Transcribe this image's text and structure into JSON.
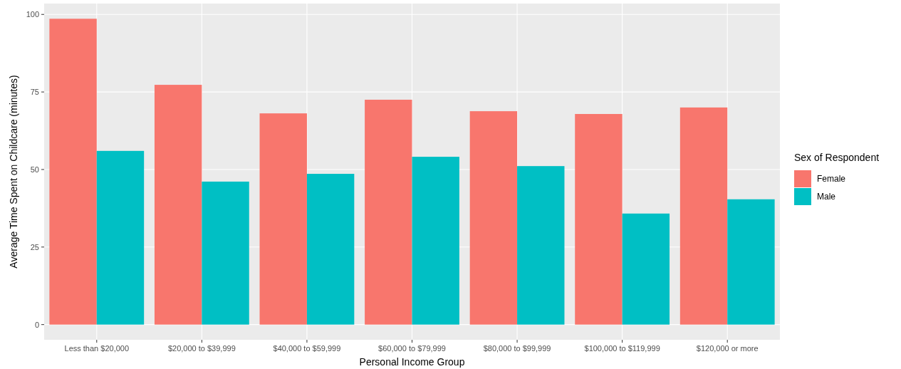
{
  "chart_data": {
    "type": "bar",
    "xlabel": "Personal Income Group",
    "ylabel": "Average Time Spent on Childcare (minutes)",
    "legend_title": "Sex of Respondent",
    "categories": [
      "Less than $20,000",
      "$20,000 to $39,999",
      "$40,000 to $59,999",
      "$60,000 to $79,999",
      "$80,000 to $99,999",
      "$100,000 to $119,999",
      "$120,000 or more"
    ],
    "series": [
      {
        "name": "Female",
        "color": "#f8766d",
        "values": [
          98.6,
          77.3,
          68.1,
          72.5,
          68.8,
          67.9,
          70.0
        ]
      },
      {
        "name": "Male",
        "color": "#00bfc4",
        "values": [
          56.0,
          46.1,
          48.6,
          54.1,
          51.1,
          35.8,
          40.4
        ]
      }
    ],
    "ylim": [
      -4.9,
      103.5
    ],
    "yticks": [
      0,
      25,
      50,
      75,
      100
    ],
    "grid": true,
    "legend": "right"
  }
}
